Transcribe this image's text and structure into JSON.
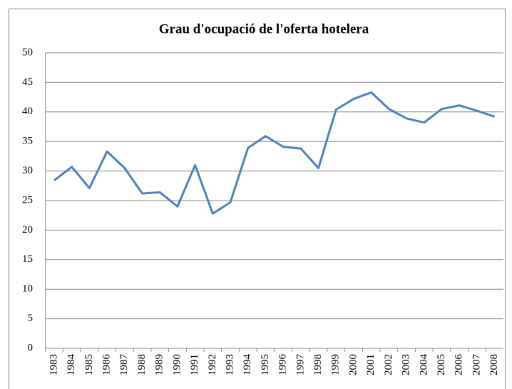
{
  "chart_data": {
    "type": "line",
    "title": "Grau d'ocupació de l'oferta hotelera",
    "categories": [
      "1983",
      "1984",
      "1985",
      "1986",
      "1987",
      "1988",
      "1989",
      "1990",
      "1991",
      "1992",
      "1993",
      "1994",
      "1995",
      "1996",
      "1997",
      "1998",
      "1999",
      "2000",
      "2001",
      "2002",
      "2003",
      "2004",
      "2005",
      "2006",
      "2007",
      "2008"
    ],
    "series": [
      {
        "name": "Grau d'ocupació",
        "color": "#4f81bd",
        "values": [
          28.4,
          30.7,
          27.1,
          33.3,
          30.5,
          26.2,
          26.4,
          24.0,
          31.0,
          22.8,
          24.7,
          33.9,
          35.9,
          34.1,
          33.8,
          30.5,
          40.4,
          42.2,
          43.3,
          40.5,
          38.9,
          38.2,
          40.5,
          41.1,
          40.2,
          39.2
        ]
      }
    ],
    "ylim": [
      0,
      50
    ],
    "yticks": [
      0,
      5,
      10,
      15,
      20,
      25,
      30,
      35,
      40,
      45,
      50
    ],
    "grid": true
  }
}
